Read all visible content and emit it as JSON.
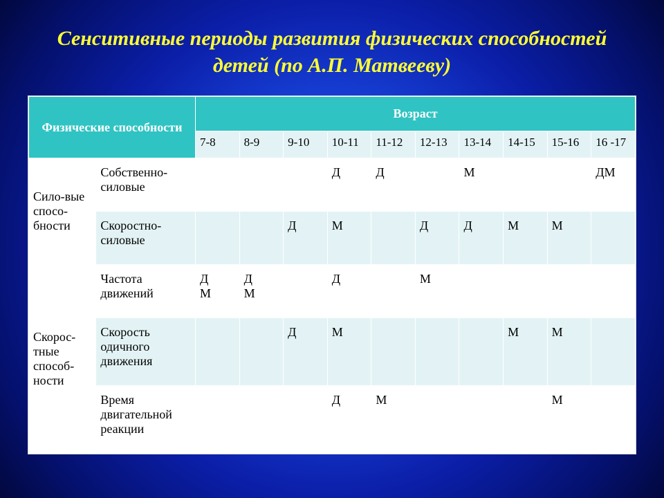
{
  "title": "Сенситивные периоды развития физических способностей детей (по А.П. Матвееву)",
  "headers": {
    "abilities": "Физические способности",
    "age": "Возраст",
    "ages": [
      "7-8",
      "8-9",
      "9-10",
      "10-11",
      "11-12",
      "12-13",
      "13-14",
      "14-15",
      "15-16",
      "16 -17"
    ]
  },
  "groups": [
    {
      "name": "Сило-вые спосо-бности",
      "rows": [
        {
          "sub": "Собственно-силовые",
          "cells": [
            "",
            "",
            "",
            "Д",
            "Д",
            "",
            "М",
            "",
            "",
            "ДМ"
          ]
        },
        {
          "sub": "Скоростно-силовые",
          "cells": [
            "",
            "",
            "Д",
            "М",
            "",
            "Д",
            "Д",
            "М",
            "М",
            ""
          ]
        }
      ]
    },
    {
      "name": "Скорос-тные способ-ности",
      "rows": [
        {
          "sub": "Частота движений",
          "cells": [
            "ДМ",
            "ДМ",
            "",
            "Д",
            "",
            "М",
            "",
            "",
            "",
            ""
          ]
        },
        {
          "sub": "Скорость одичного движения",
          "cells": [
            "",
            "",
            "Д",
            "М",
            "",
            "",
            "",
            "М",
            "М",
            ""
          ]
        },
        {
          "sub": "Время двигательной реакции",
          "cells": [
            "",
            "",
            "",
            "Д",
            "М",
            "",
            "",
            "",
            "М",
            ""
          ]
        }
      ]
    }
  ],
  "colors": {
    "title": "#ffff33",
    "header_teal": "#30c3c3",
    "row_even": "#e3f3f5",
    "row_odd": "#ffffff"
  }
}
